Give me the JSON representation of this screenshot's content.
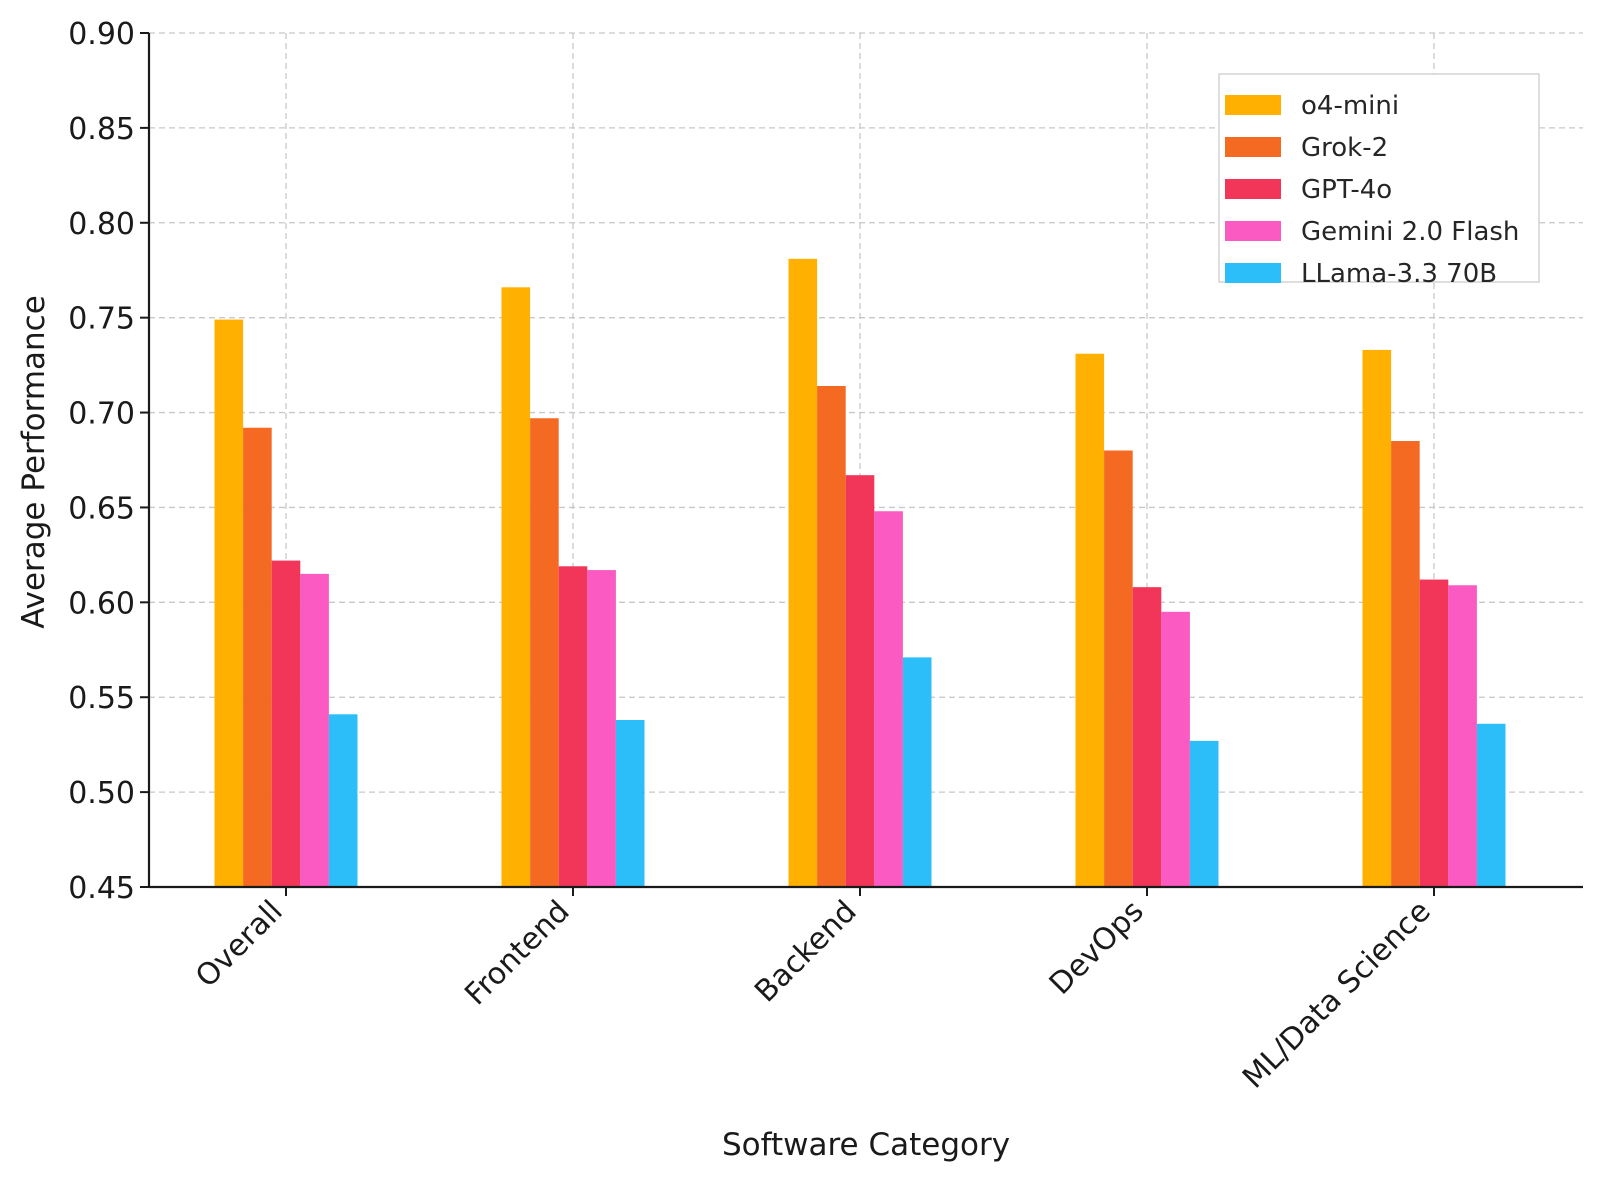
{
  "chart_data": {
    "type": "bar",
    "xlabel": "Software Category",
    "ylabel": "Average Performance",
    "ylim": [
      0.45,
      0.9
    ],
    "yticks": [
      0.45,
      0.5,
      0.55,
      0.6,
      0.65,
      0.7,
      0.75,
      0.8,
      0.85,
      0.9
    ],
    "ytick_labels": [
      "0.45",
      "0.50",
      "0.55",
      "0.60",
      "0.65",
      "0.70",
      "0.75",
      "0.80",
      "0.85",
      "0.90"
    ],
    "grid": true,
    "legend_position": "top-right",
    "categories": [
      "Overall",
      "Frontend",
      "Backend",
      "DevOps",
      "ML/Data Science"
    ],
    "series": [
      {
        "name": "o4-mini",
        "color": "#FFB000",
        "values": [
          0.749,
          0.766,
          0.781,
          0.731,
          0.733
        ]
      },
      {
        "name": "Grok-2",
        "color": "#F46A23",
        "values": [
          0.692,
          0.697,
          0.714,
          0.68,
          0.685
        ]
      },
      {
        "name": "GPT-4o",
        "color": "#F2365A",
        "values": [
          0.622,
          0.619,
          0.667,
          0.608,
          0.612
        ]
      },
      {
        "name": "Gemini 2.0 Flash",
        "color": "#FA5AC2",
        "values": [
          0.615,
          0.617,
          0.648,
          0.595,
          0.609
        ]
      },
      {
        "name": "LLama-3.3 70B",
        "color": "#2BBEF9",
        "values": [
          0.541,
          0.538,
          0.571,
          0.527,
          0.536
        ]
      }
    ]
  }
}
